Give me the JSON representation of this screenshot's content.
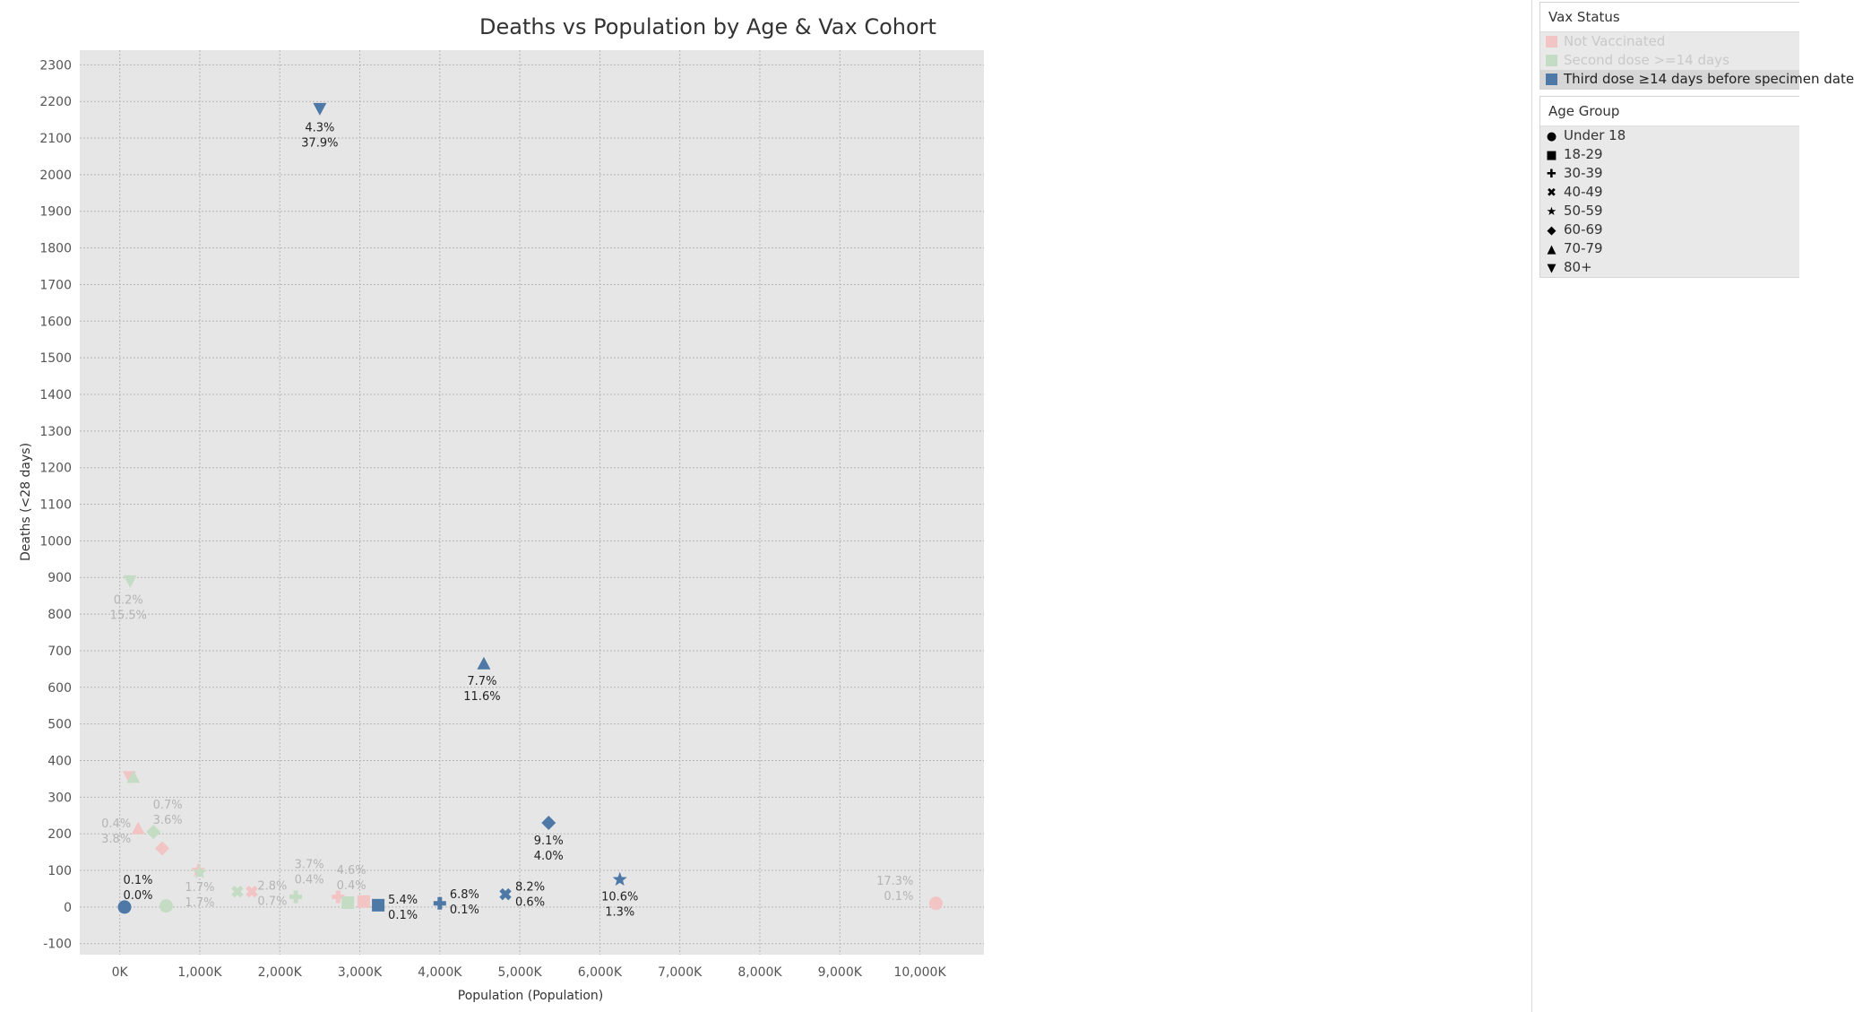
{
  "chart_data": {
    "type": "scatter",
    "title": "Deaths vs Population by Age & Vax Cohort",
    "xlabel": "Population (Population)",
    "ylabel": "Deaths (<28 days)",
    "xlim": [
      -500,
      10800
    ],
    "ylim": [
      -130,
      2340
    ],
    "x_unit": "K",
    "x_ticks": [
      0,
      1000,
      2000,
      3000,
      4000,
      5000,
      6000,
      7000,
      8000,
      9000,
      10000
    ],
    "x_tick_labels": [
      "0K",
      "1,000K",
      "2,000K",
      "3,000K",
      "4,000K",
      "5,000K",
      "6,000K",
      "7,000K",
      "8,000K",
      "9,000K",
      "10,000K"
    ],
    "y_ticks": [
      -100,
      0,
      100,
      200,
      300,
      400,
      500,
      600,
      700,
      800,
      900,
      1000,
      1100,
      1200,
      1300,
      1400,
      1500,
      1600,
      1700,
      1800,
      1900,
      2000,
      2100,
      2200,
      2300
    ],
    "grid": true,
    "legend_position": "right",
    "series": [
      {
        "name": "Not Vaccinated",
        "color": "#f2c4c4",
        "points": [
          {
            "age": "Under 18",
            "x": 10200,
            "y": 10,
            "labels": [
              "17.3%",
              "0.1%"
            ]
          },
          {
            "age": "18-29",
            "x": 3050,
            "y": 15,
            "labels": []
          },
          {
            "age": "30-39",
            "x": 2730,
            "y": 28,
            "labels": []
          },
          {
            "age": "40-49",
            "x": 1650,
            "y": 42,
            "labels": []
          },
          {
            "age": "50-59",
            "x": 980,
            "y": 100,
            "labels": []
          },
          {
            "age": "60-69",
            "x": 530,
            "y": 160,
            "labels": []
          },
          {
            "age": "70-79",
            "x": 230,
            "y": 215,
            "labels": [
              "0.4%",
              "3.8%"
            ]
          },
          {
            "age": "80+",
            "x": 120,
            "y": 355,
            "labels": []
          }
        ]
      },
      {
        "name": "Second dose >=14 days",
        "color": "#c5dcc4",
        "points": [
          {
            "age": "Under 18",
            "x": 580,
            "y": 3,
            "labels": []
          },
          {
            "age": "18-29",
            "x": 2850,
            "y": 12,
            "labels": [
              "4.6%",
              "0.4%"
            ]
          },
          {
            "age": "30-39",
            "x": 2200,
            "y": 28,
            "labels": [
              "3.7%",
              "0.4%"
            ]
          },
          {
            "age": "40-49",
            "x": 1470,
            "y": 42,
            "labels": [
              "2.8%",
              "0.7%"
            ]
          },
          {
            "age": "50-59",
            "x": 1000,
            "y": 95,
            "labels": [
              "1.7%",
              "1.7%"
            ]
          },
          {
            "age": "60-69",
            "x": 420,
            "y": 205,
            "labels": [
              "0.7%",
              "3.6%"
            ]
          },
          {
            "age": "70-79",
            "x": 170,
            "y": 355,
            "labels": []
          },
          {
            "age": "80+",
            "x": 130,
            "y": 890,
            "labels": [
              "0.2%",
              "15.5%"
            ]
          }
        ]
      },
      {
        "name": "Third dose ≥14 days before specimen date",
        "color": "#4e79a7",
        "points": [
          {
            "age": "Under 18",
            "x": 60,
            "y": 0,
            "labels": [
              "0.1%",
              "0.0%"
            ]
          },
          {
            "age": "18-29",
            "x": 3230,
            "y": 5,
            "labels": [
              "5.4%",
              "0.1%"
            ]
          },
          {
            "age": "30-39",
            "x": 4000,
            "y": 10,
            "labels": [
              "6.8%",
              "0.1%"
            ]
          },
          {
            "age": "40-49",
            "x": 4820,
            "y": 35,
            "labels": [
              "8.2%",
              "0.6%"
            ]
          },
          {
            "age": "50-59",
            "x": 6250,
            "y": 75,
            "labels": [
              "10.6%",
              "1.3%"
            ]
          },
          {
            "age": "60-69",
            "x": 5360,
            "y": 230,
            "labels": [
              "9.1%",
              "4.0%"
            ]
          },
          {
            "age": "70-79",
            "x": 4550,
            "y": 665,
            "labels": [
              "7.7%",
              "11.6%"
            ]
          },
          {
            "age": "80+",
            "x": 2500,
            "y": 2180,
            "labels": [
              "4.3%",
              "37.9%"
            ]
          }
        ]
      }
    ]
  },
  "legends": {
    "vax_status": {
      "title": "Vax Status",
      "items": [
        {
          "label": "Not Vaccinated",
          "color": "#f2c4c4"
        },
        {
          "label": "Second dose >=14 days",
          "color": "#c5dcc4"
        },
        {
          "label": "Third dose ≥14 days before specimen date",
          "color": "#4e79a7"
        }
      ]
    },
    "age_group": {
      "title": "Age Group",
      "items": [
        {
          "label": "Under 18",
          "shape": "circle"
        },
        {
          "label": "18-29",
          "shape": "square"
        },
        {
          "label": "30-39",
          "shape": "plus"
        },
        {
          "label": "40-49",
          "shape": "cross"
        },
        {
          "label": "50-59",
          "shape": "star"
        },
        {
          "label": "60-69",
          "shape": "diamond"
        },
        {
          "label": "70-79",
          "shape": "triangle-up"
        },
        {
          "label": "80+",
          "shape": "triangle-down"
        }
      ]
    }
  }
}
